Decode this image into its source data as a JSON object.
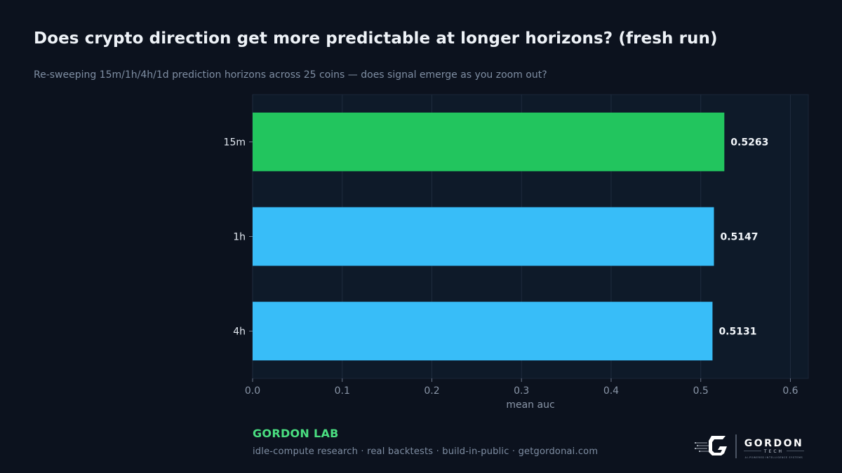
{
  "title": "Does crypto direction get more predictable at longer horizons? (fresh run)",
  "subtitle": "Re-sweeping 15m/1h/4h/1d prediction horizons across 25 coins — does signal emerge as you zoom out?",
  "chart_data": {
    "type": "bar",
    "orientation": "horizontal",
    "categories": [
      "15m",
      "1h",
      "4h"
    ],
    "values": [
      0.5263,
      0.5147,
      0.5131
    ],
    "value_labels": [
      "0.5263",
      "0.5147",
      "0.5131"
    ],
    "bar_colors": [
      "#22c55e",
      "#38bdf8",
      "#38bdf8"
    ],
    "xlabel": "mean auc",
    "ylabel": "",
    "xlim": [
      0,
      0.62
    ],
    "xticks": [
      0.0,
      0.1,
      0.2,
      0.3,
      0.4,
      0.5,
      0.6
    ],
    "xtick_labels": [
      "0.0",
      "0.1",
      "0.2",
      "0.3",
      "0.4",
      "0.5",
      "0.6"
    ],
    "grid": "vertical"
  },
  "footer": {
    "brand": "GORDON LAB",
    "tagline": "idle-compute research · real backtests · build-in-public · getgordonai.com"
  },
  "logo": {
    "wordmark": "GORDON",
    "sub": "TECH",
    "motto": "AI-POWERED INTELLIGENCE SYSTEMS",
    "icon": "gordon-g-logo-icon"
  },
  "colors": {
    "background": "#0c121e",
    "plot_background": "#0e1a29",
    "highlight_bar": "#22c55e",
    "bar": "#38bdf8",
    "brand_accent": "#4ade80"
  }
}
